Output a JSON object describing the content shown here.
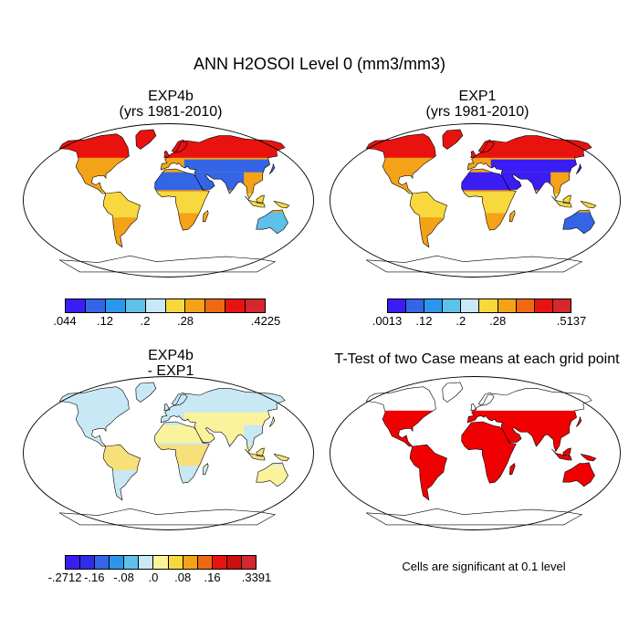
{
  "figure": {
    "title": "ANN H2OSOI Level 0 (mm3/mm3)"
  },
  "panels": {
    "top_left": {
      "title_line1": "EXP4b",
      "title_line2": "(yrs 1981-2010)"
    },
    "top_right": {
      "title_line1": "EXP1",
      "title_line2": "(yrs 1981-2010)"
    },
    "bottom_left": {
      "title_line1": "EXP4b",
      "title_line2": "- EXP1"
    },
    "bottom_right": {
      "title": "T-Test of two Case means at each grid point",
      "note": "Cells are significant at 0.1 level"
    }
  },
  "colorbars": {
    "exp4b": {
      "colors": [
        "#3a1df5",
        "#3465e6",
        "#2a97ec",
        "#5ec1ea",
        "#c8e8f5",
        "#f7d93e",
        "#f4a318",
        "#ef6914",
        "#e8130f",
        "#d3282d"
      ],
      "tick_labels": [
        ".044",
        ".12",
        ".2",
        ".28",
        ".4225"
      ],
      "tick_boundaries": [
        0,
        2,
        4,
        6,
        10
      ]
    },
    "exp1": {
      "colors": [
        "#3a1df5",
        "#3465e6",
        "#2a97ec",
        "#5ec1ea",
        "#c8e8f5",
        "#f7d93e",
        "#f4a318",
        "#ef6914",
        "#e8130f",
        "#d3282d"
      ],
      "tick_labels": [
        ".0013",
        ".12",
        ".2",
        ".28",
        ".5137"
      ],
      "tick_boundaries": [
        0,
        2,
        4,
        6,
        10
      ]
    },
    "diff": {
      "colors": [
        "#3a1df5",
        "#2e2de8",
        "#3465e6",
        "#2a97ec",
        "#5ec1ea",
        "#c8e8f5",
        "#fbf29c",
        "#f7d93e",
        "#f4a318",
        "#ef6914",
        "#e8130f",
        "#cc1010",
        "#d3282d"
      ],
      "tick_labels": [
        "-.2712",
        "-.16",
        "-.08",
        ".0",
        ".08",
        ".16",
        ".3391"
      ],
      "tick_boundaries": [
        0,
        2,
        4,
        6,
        8,
        10,
        13
      ]
    }
  },
  "map_fills": {
    "exp4b": {
      "land_base": "#f4a318",
      "north": "#e8130f",
      "desert": "#3465e6",
      "tropics": "#f7d93e",
      "oz": "#5ec1ea"
    },
    "exp1": {
      "land_base": "#f4a318",
      "north": "#e8130f",
      "desert": "#3a1df5",
      "tropics": "#f7d93e",
      "oz": "#3465e6"
    },
    "diff": {
      "land_base": "#c8e8f5",
      "north": "#c8e8f5",
      "desert": "#fbf29c",
      "tropics": "#f7e07a",
      "oz": "#fbf29c"
    },
    "ttest": {
      "land_base": "#f00000",
      "north": "#ffffff",
      "desert": "#f00000",
      "tropics": "#f00000",
      "oz": "#f00000"
    }
  }
}
